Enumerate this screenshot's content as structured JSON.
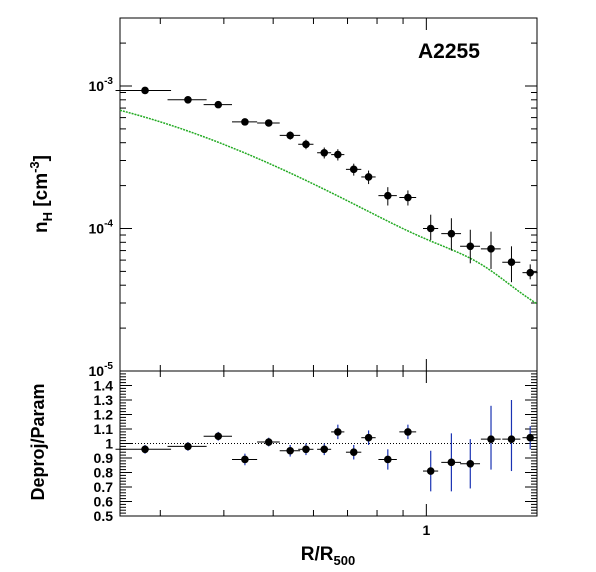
{
  "chart_data": [
    {
      "type": "scatter",
      "panel": "top",
      "annotation": "A2255",
      "ylabel": "n",
      "ylabel_sub": "H",
      "ylabel_unit_prefix": " [cm",
      "ylabel_unit_sup": "-3",
      "ylabel_unit_suffix": "]",
      "xscale": "log",
      "yscale": "log",
      "xlim": [
        0.25,
        1.65
      ],
      "ylim": [
        1e-05,
        0.003
      ],
      "yticks": [
        {
          "value": 0.001,
          "base": "10",
          "exp": "-3"
        },
        {
          "value": 0.0001,
          "base": "10",
          "exp": "-4"
        },
        {
          "value": 1e-05,
          "base": "10",
          "exp": "-5"
        }
      ],
      "grid": false,
      "model_color": "#22aa22",
      "marker_color": "#000000",
      "errorbar_color": "#000000",
      "x": [
        0.28,
        0.34,
        0.39,
        0.44,
        0.49,
        0.54,
        0.58,
        0.63,
        0.67,
        0.72,
        0.77,
        0.84,
        0.92,
        1.02,
        1.12,
        1.22,
        1.34,
        1.47,
        1.6
      ],
      "xerr": [
        0.035,
        0.03,
        0.025,
        0.025,
        0.025,
        0.025,
        0.02,
        0.02,
        0.02,
        0.025,
        0.025,
        0.035,
        0.035,
        0.035,
        0.05,
        0.055,
        0.06,
        0.06,
        0.055
      ],
      "y": [
        0.00093,
        0.0008,
        0.00074,
        0.00056,
        0.00055,
        0.00045,
        0.00039,
        0.00034,
        0.00033,
        0.00026,
        0.00023,
        0.00017,
        0.000165,
        0.0001,
        9.2e-05,
        7.5e-05,
        7.2e-05,
        5.8e-05,
        4.9e-05
      ],
      "ylo": [
        0.00089,
        0.00077,
        0.00071,
        0.00053,
        0.00052,
        0.00042,
        0.00036,
        0.00031,
        0.0003,
        0.000235,
        0.000205,
        0.000145,
        0.000145,
        8.3e-05,
        7e-05,
        5.7e-05,
        5.2e-05,
        4.2e-05,
        4.4e-05
      ],
      "yhi": [
        0.00097,
        0.00083,
        0.00077,
        0.00059,
        0.00058,
        0.00048,
        0.00042,
        0.00037,
        0.00036,
        0.000285,
        0.000255,
        0.000195,
        0.000185,
        0.000125,
        0.000118,
        9.8e-05,
        9.5e-05,
        7.5e-05,
        5.6e-05
      ]
    },
    {
      "type": "scatter",
      "panel": "bottom",
      "xlabel": "R/R",
      "xlabel_sub": "500",
      "ylabel": "Deproj/Param",
      "xscale": "log",
      "xlim": [
        0.25,
        1.65
      ],
      "ylim": [
        0.5,
        1.5
      ],
      "yticks": [
        0.5,
        0.6,
        0.7,
        0.8,
        0.9,
        1,
        1.1,
        1.2,
        1.3,
        1.4
      ],
      "xticks": [
        1
      ],
      "grid": false,
      "reference_line": 1,
      "marker_color": "#000000",
      "errorbar_color": "#1a33b3",
      "x": [
        0.28,
        0.34,
        0.39,
        0.44,
        0.49,
        0.54,
        0.58,
        0.63,
        0.67,
        0.72,
        0.77,
        0.84,
        0.92,
        1.02,
        1.12,
        1.22,
        1.34,
        1.47,
        1.6
      ],
      "xerr": [
        0.035,
        0.03,
        0.025,
        0.025,
        0.025,
        0.025,
        0.02,
        0.02,
        0.02,
        0.025,
        0.025,
        0.035,
        0.035,
        0.035,
        0.05,
        0.055,
        0.06,
        0.06,
        0.055
      ],
      "y": [
        0.96,
        0.98,
        1.05,
        0.89,
        1.01,
        0.95,
        0.96,
        0.96,
        1.08,
        0.94,
        1.04,
        0.89,
        1.08,
        0.81,
        0.87,
        0.86,
        1.03,
        1.03,
        1.04
      ],
      "ylo": [
        0.93,
        0.95,
        1.02,
        0.85,
        0.98,
        0.91,
        0.92,
        0.92,
        1.03,
        0.89,
        0.99,
        0.82,
        1.03,
        0.67,
        0.67,
        0.69,
        0.82,
        0.81,
        0.96
      ],
      "yhi": [
        0.99,
        1.01,
        1.08,
        0.93,
        1.04,
        0.99,
        1.0,
        1.0,
        1.13,
        0.99,
        1.09,
        0.96,
        1.13,
        0.95,
        1.07,
        1.03,
        1.26,
        1.3,
        1.12
      ]
    }
  ]
}
